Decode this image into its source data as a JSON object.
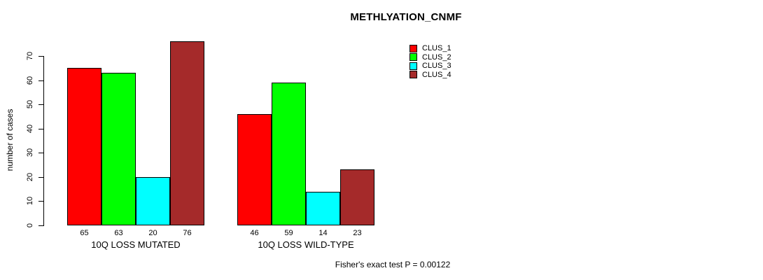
{
  "title": "METHLYATION_CNMF",
  "footer": "Fisher's exact test P = 0.00122",
  "chart_data": {
    "type": "bar",
    "title": "METHLYATION_CNMF",
    "groups": [
      "10Q LOSS MUTATED",
      "10Q LOSS WILD-TYPE"
    ],
    "series": [
      {
        "name": "CLUS_1",
        "color": "#FF0000",
        "values": [
          65,
          46
        ]
      },
      {
        "name": "CLUS_2",
        "color": "#00FF00",
        "values": [
          63,
          59
        ]
      },
      {
        "name": "CLUS_3",
        "color": "#00FFFF",
        "values": [
          20,
          14
        ]
      },
      {
        "name": "CLUS_4",
        "color": "#A52A2A",
        "values": [
          76,
          23
        ]
      }
    ],
    "ylabel": "number of cases",
    "xlabel": "",
    "yticks": [
      0,
      10,
      20,
      30,
      40,
      50,
      60,
      70
    ],
    "ylim": [
      0,
      70
    ],
    "bar_value_labels": true,
    "grid": false,
    "legend_position": "top-right",
    "annotation": "Fisher's exact test P = 0.00122"
  }
}
